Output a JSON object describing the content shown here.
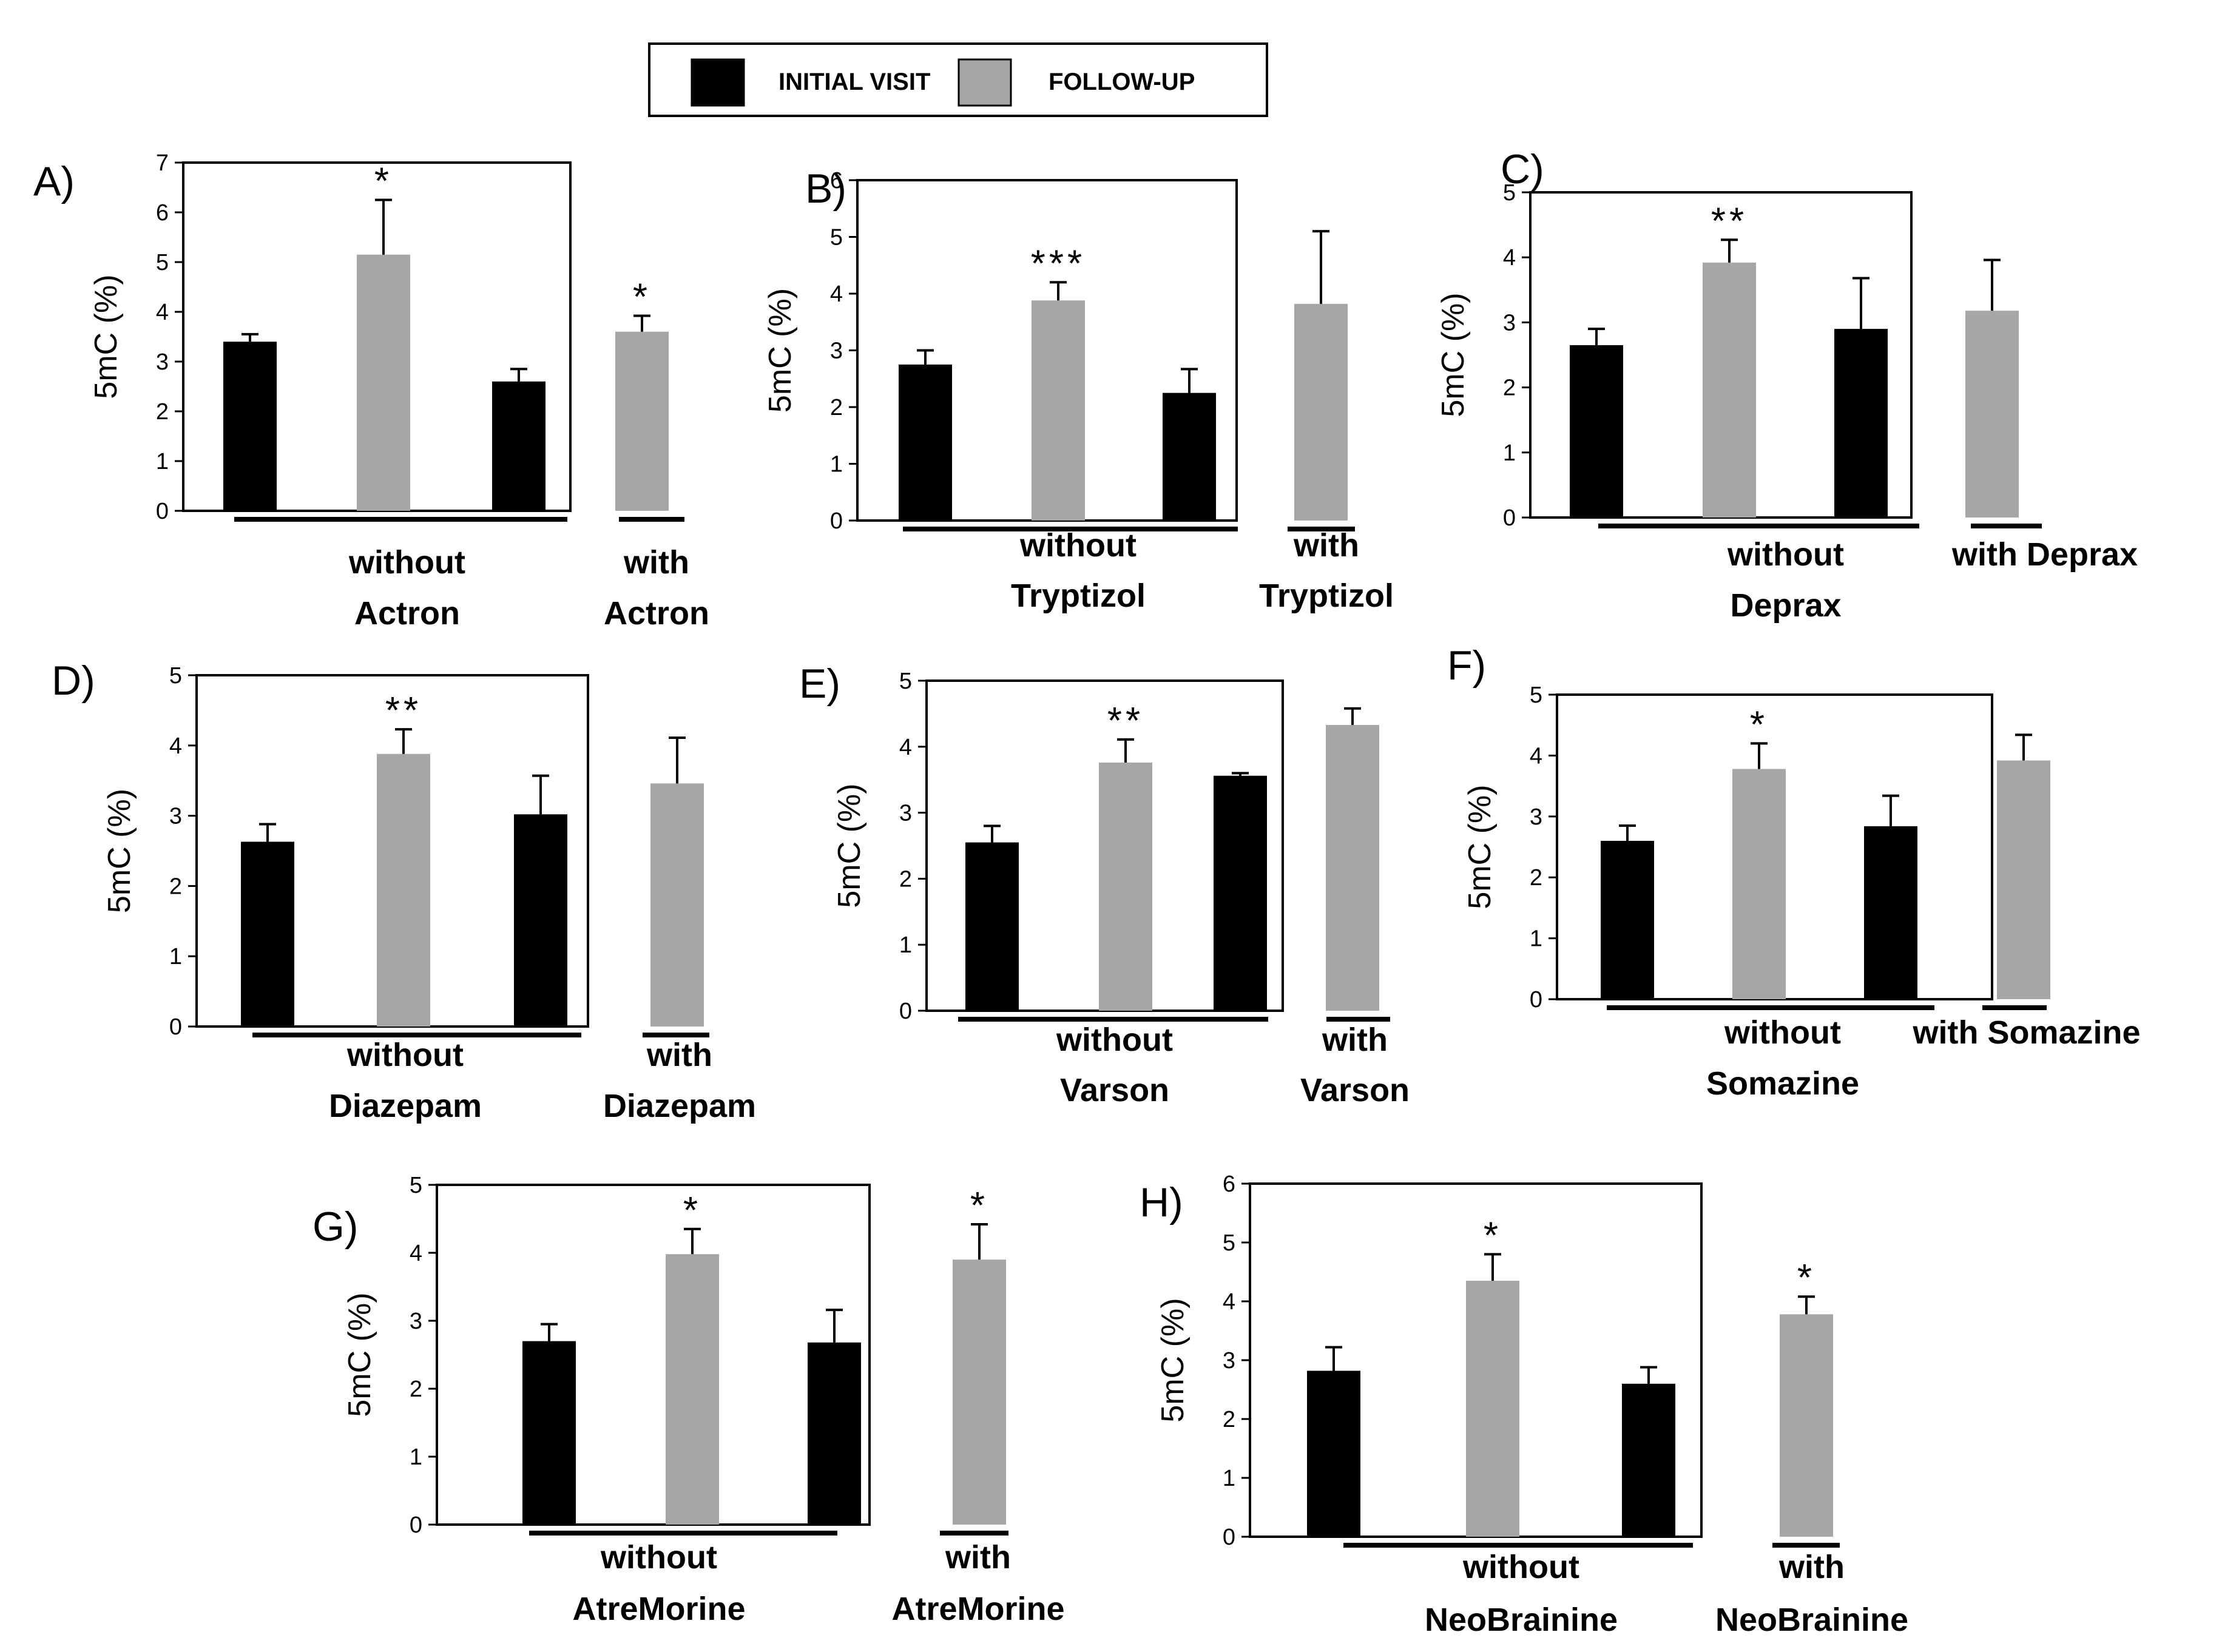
{
  "legend": {
    "items": [
      {
        "label": "INITIAL VISIT",
        "color": "#000000"
      },
      {
        "label": "FOLLOW-UP",
        "color": "#a6a6a6"
      }
    ]
  },
  "colors": {
    "initial": "#000000",
    "followup": "#a6a6a6"
  },
  "chart_data": [
    {
      "type": "bar",
      "panel": "A)",
      "ylabel": "5mC (%)",
      "ylim": [
        0,
        7
      ],
      "yticks": [
        "0",
        "1",
        "2",
        "3",
        "4",
        "5",
        "6",
        "7"
      ],
      "bars": [
        {
          "group": "initial",
          "value": 3.4,
          "err": 0.15
        },
        {
          "group": "followup",
          "value": 5.15,
          "err": 1.1
        },
        {
          "group": "initial",
          "value": 2.6,
          "err": 0.25
        },
        {
          "group": "followup",
          "value": 3.6,
          "err": 0.32
        }
      ],
      "significance": [
        "",
        "*",
        "",
        "*"
      ],
      "groups": [
        {
          "lines": [
            "without",
            "Actron"
          ]
        },
        {
          "lines": [
            "with",
            "Actron"
          ]
        }
      ]
    },
    {
      "type": "bar",
      "panel": "B)",
      "ylabel": "5mC (%)",
      "ylim": [
        0,
        6
      ],
      "yticks": [
        "0",
        "1",
        "2",
        "3",
        "4",
        "5",
        "6"
      ],
      "bars": [
        {
          "group": "initial",
          "value": 2.75,
          "err": 0.25
        },
        {
          "group": "followup",
          "value": 3.88,
          "err": 0.32
        },
        {
          "group": "initial",
          "value": 2.25,
          "err": 0.42
        },
        {
          "group": "followup",
          "value": 3.82,
          "err": 1.28
        }
      ],
      "significance": [
        "",
        "***",
        "",
        ""
      ],
      "groups": [
        {
          "lines": [
            "without",
            "Tryptizol"
          ]
        },
        {
          "lines": [
            "with",
            "Tryptizol"
          ]
        }
      ]
    },
    {
      "type": "bar",
      "panel": "C)",
      "ylabel": "5mC (%)",
      "ylim": [
        0,
        5
      ],
      "yticks": [
        "0",
        "1",
        "2",
        "3",
        "4",
        "5"
      ],
      "bars": [
        {
          "group": "initial",
          "value": 2.65,
          "err": 0.25
        },
        {
          "group": "followup",
          "value": 3.92,
          "err": 0.35
        },
        {
          "group": "initial",
          "value": 2.9,
          "err": 0.78
        },
        {
          "group": "followup",
          "value": 3.18,
          "err": 0.78
        }
      ],
      "significance": [
        "",
        "**",
        "",
        ""
      ],
      "groups": [
        {
          "lines": [
            "without",
            "Deprax"
          ]
        },
        {
          "lines": [
            "with Deprax"
          ]
        }
      ]
    },
    {
      "type": "bar",
      "panel": "D)",
      "ylabel": "5mC (%)",
      "ylim": [
        0,
        5
      ],
      "yticks": [
        "0",
        "1",
        "2",
        "3",
        "4",
        "5"
      ],
      "bars": [
        {
          "group": "initial",
          "value": 2.63,
          "err": 0.25
        },
        {
          "group": "followup",
          "value": 3.88,
          "err": 0.35
        },
        {
          "group": "initial",
          "value": 3.02,
          "err": 0.55
        },
        {
          "group": "followup",
          "value": 3.46,
          "err": 0.65
        }
      ],
      "significance": [
        "",
        "**",
        "",
        ""
      ],
      "groups": [
        {
          "lines": [
            "without",
            "Diazepam"
          ]
        },
        {
          "lines": [
            "with",
            "Diazepam"
          ]
        }
      ]
    },
    {
      "type": "bar",
      "panel": "E)",
      "ylabel": "5mC (%)",
      "ylim": [
        0,
        5
      ],
      "yticks": [
        "0",
        "1",
        "2",
        "3",
        "4",
        "5"
      ],
      "bars": [
        {
          "group": "initial",
          "value": 2.55,
          "err": 0.25
        },
        {
          "group": "followup",
          "value": 3.76,
          "err": 0.35
        },
        {
          "group": "initial",
          "value": 3.56,
          "err": 0.04
        },
        {
          "group": "followup",
          "value": 4.33,
          "err": 0.25
        }
      ],
      "significance": [
        "",
        "**",
        "",
        ""
      ],
      "groups": [
        {
          "lines": [
            "without",
            "Varson"
          ]
        },
        {
          "lines": [
            "with",
            "Varson"
          ]
        }
      ]
    },
    {
      "type": "bar",
      "panel": "F)",
      "ylabel": "5mC (%)",
      "ylim": [
        0,
        5
      ],
      "yticks": [
        "0",
        "1",
        "2",
        "3",
        "4",
        "5"
      ],
      "bars": [
        {
          "group": "initial",
          "value": 2.6,
          "err": 0.25
        },
        {
          "group": "followup",
          "value": 3.78,
          "err": 0.42
        },
        {
          "group": "initial",
          "value": 2.84,
          "err": 0.5
        },
        {
          "group": "followup",
          "value": 3.92,
          "err": 0.42
        }
      ],
      "significance": [
        "",
        "*",
        "",
        ""
      ],
      "groups": [
        {
          "lines": [
            "without",
            "Somazine"
          ]
        },
        {
          "lines": [
            "with Somazine"
          ]
        }
      ]
    },
    {
      "type": "bar",
      "panel": "G)",
      "ylabel": "5mC (%)",
      "ylim": [
        0,
        5
      ],
      "yticks": [
        "0",
        "1",
        "2",
        "3",
        "4",
        "5"
      ],
      "bars": [
        {
          "group": "initial",
          "value": 2.7,
          "err": 0.25
        },
        {
          "group": "followup",
          "value": 3.98,
          "err": 0.37
        },
        {
          "group": "initial",
          "value": 2.68,
          "err": 0.48
        },
        {
          "group": "followup",
          "value": 3.9,
          "err": 0.52
        }
      ],
      "significance": [
        "",
        "*",
        "",
        "*"
      ],
      "groups": [
        {
          "lines": [
            "without",
            "AtreMorine"
          ]
        },
        {
          "lines": [
            "with",
            "AtreMorine"
          ]
        }
      ]
    },
    {
      "type": "bar",
      "panel": "H)",
      "ylabel": "5mC (%)",
      "ylim": [
        0,
        6
      ],
      "yticks": [
        "0",
        "1",
        "2",
        "3",
        "4",
        "5",
        "6"
      ],
      "bars": [
        {
          "group": "initial",
          "value": 2.82,
          "err": 0.4
        },
        {
          "group": "followup",
          "value": 4.35,
          "err": 0.45
        },
        {
          "group": "initial",
          "value": 2.6,
          "err": 0.28
        },
        {
          "group": "followup",
          "value": 3.78,
          "err": 0.3
        }
      ],
      "significance": [
        "",
        "*",
        "",
        "*"
      ],
      "groups": [
        {
          "lines": [
            "without",
            "NeoBrainine"
          ]
        },
        {
          "lines": [
            "with",
            "NeoBrainine"
          ]
        }
      ]
    }
  ]
}
